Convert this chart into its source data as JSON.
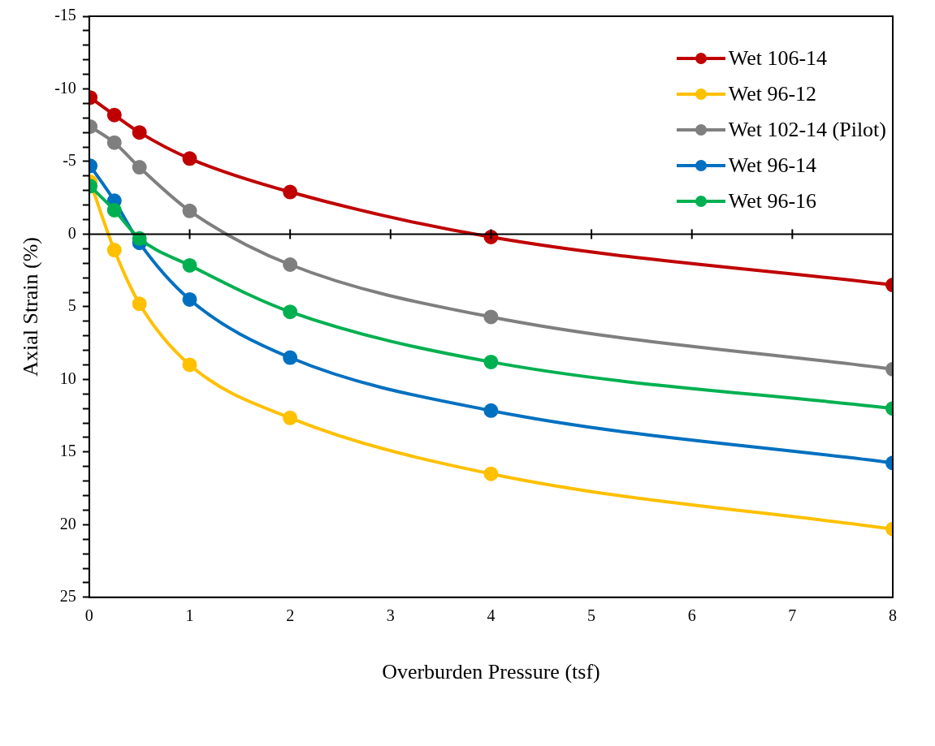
{
  "chart_data": {
    "type": "line",
    "xlabel": "Overburden Pressure (tsf)",
    "ylabel": "Axial Strain (%)",
    "x": [
      0.01,
      0.25,
      0.5,
      1,
      2,
      4,
      8
    ],
    "series": [
      {
        "name": "Wet 106-14",
        "color": "#c00000",
        "values": [
          -9.4,
          -8.2,
          -7.0,
          -5.2,
          -2.9,
          0.2,
          3.5
        ]
      },
      {
        "name": "Wet 96-12",
        "color": "#ffc000",
        "values": [
          -3.6,
          1.1,
          4.8,
          9.0,
          12.65,
          16.5,
          20.3
        ]
      },
      {
        "name": "Wet 102-14 (Pilot)",
        "color": "#7f7f7f",
        "values": [
          -7.4,
          -6.3,
          -4.6,
          -1.6,
          2.1,
          5.7,
          9.3
        ]
      },
      {
        "name": "Wet 96-14",
        "color": "#0070c0",
        "values": [
          -4.7,
          -2.3,
          0.6,
          4.5,
          8.5,
          12.15,
          15.75
        ]
      },
      {
        "name": "Wet 96-16",
        "color": "#00b050",
        "values": [
          -3.3,
          -1.65,
          0.3,
          2.15,
          5.35,
          8.8,
          12.0
        ]
      }
    ],
    "xlim": [
      0,
      8
    ],
    "xticks": [
      0,
      1,
      2,
      3,
      4,
      5,
      6,
      7,
      8
    ],
    "ylim": [
      25,
      -15
    ],
    "yticks": [
      -15,
      {
        "value": -14,
        "label": null
      },
      {
        "value": -13,
        "label": null
      },
      {
        "value": -12,
        "label": null
      },
      {
        "value": -11,
        "label": null
      },
      -10,
      {
        "value": -9,
        "label": null
      },
      {
        "value": -8,
        "label": null
      },
      {
        "value": -7,
        "label": null
      },
      {
        "value": -6,
        "label": null
      },
      -5,
      {
        "value": -4,
        "label": null
      },
      {
        "value": -3,
        "label": null
      },
      {
        "value": -2,
        "label": null
      },
      {
        "value": -1,
        "label": null
      },
      0,
      {
        "value": 1,
        "label": null
      },
      {
        "value": 2,
        "label": null
      },
      {
        "value": 3,
        "label": null
      },
      {
        "value": 4,
        "label": null
      },
      5,
      {
        "value": 6,
        "label": null
      },
      {
        "value": 7,
        "label": null
      },
      {
        "value": 8,
        "label": null
      },
      {
        "value": 9,
        "label": null
      },
      10,
      {
        "value": 11,
        "label": null
      },
      {
        "value": 12,
        "label": null
      },
      {
        "value": 13,
        "label": null
      },
      {
        "value": 14,
        "label": null
      },
      15,
      {
        "value": 16,
        "label": null
      },
      {
        "value": 17,
        "label": null
      },
      {
        "value": 18,
        "label": null
      },
      {
        "value": 19,
        "label": null
      },
      20,
      {
        "value": 21,
        "label": null
      },
      {
        "value": 22,
        "label": null
      },
      {
        "value": 23,
        "label": null
      },
      {
        "value": 24,
        "label": null
      },
      25
    ],
    "ref_lines": [
      {
        "axis": "y",
        "value": 0,
        "color": "#000000"
      }
    ],
    "grid": false,
    "legend": "top right",
    "marker": "circle",
    "line_style": "solid"
  }
}
